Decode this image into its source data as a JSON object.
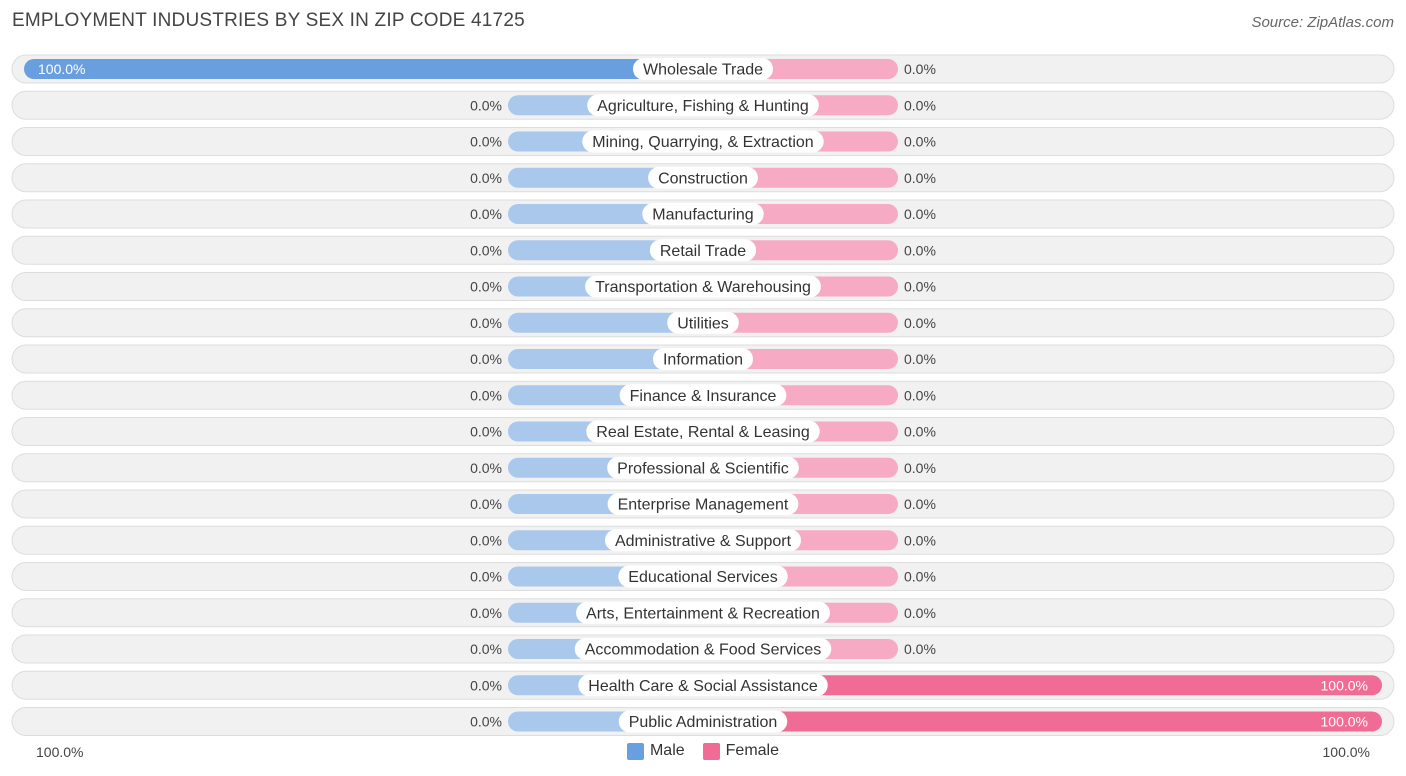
{
  "header": {
    "title": "EMPLOYMENT INDUSTRIES BY SEX IN ZIP CODE 41725",
    "source": "Source: ZipAtlas.com"
  },
  "colors": {
    "male_strong": "#6a9fdf",
    "male_light": "#a9c8ec",
    "female_strong": "#f06c96",
    "female_light": "#f6aac4",
    "row_bg": "#f1f1f1",
    "row_border": "#dddddd"
  },
  "axis": {
    "left_label": "100.0%",
    "right_label": "100.0%"
  },
  "legend": {
    "male_label": "Male",
    "female_label": "Female"
  },
  "chart_data": {
    "type": "bar",
    "orientation": "horizontal-diverging",
    "title": "EMPLOYMENT INDUSTRIES BY SEX IN ZIP CODE 41725",
    "xlim": [
      -100,
      100
    ],
    "categories": [
      "Wholesale Trade",
      "Agriculture, Fishing & Hunting",
      "Mining, Quarrying, & Extraction",
      "Construction",
      "Manufacturing",
      "Retail Trade",
      "Transportation & Warehousing",
      "Utilities",
      "Information",
      "Finance & Insurance",
      "Real Estate, Rental & Leasing",
      "Professional & Scientific",
      "Enterprise Management",
      "Administrative & Support",
      "Educational Services",
      "Arts, Entertainment & Recreation",
      "Accommodation & Food Services",
      "Health Care & Social Assistance",
      "Public Administration"
    ],
    "series": [
      {
        "name": "Male",
        "values": [
          100,
          0,
          0,
          0,
          0,
          0,
          0,
          0,
          0,
          0,
          0,
          0,
          0,
          0,
          0,
          0,
          0,
          0,
          0
        ],
        "labels": [
          "100.0%",
          "0.0%",
          "0.0%",
          "0.0%",
          "0.0%",
          "0.0%",
          "0.0%",
          "0.0%",
          "0.0%",
          "0.0%",
          "0.0%",
          "0.0%",
          "0.0%",
          "0.0%",
          "0.0%",
          "0.0%",
          "0.0%",
          "0.0%",
          "0.0%"
        ]
      },
      {
        "name": "Female",
        "values": [
          0,
          0,
          0,
          0,
          0,
          0,
          0,
          0,
          0,
          0,
          0,
          0,
          0,
          0,
          0,
          0,
          0,
          100,
          100
        ],
        "labels": [
          "0.0%",
          "0.0%",
          "0.0%",
          "0.0%",
          "0.0%",
          "0.0%",
          "0.0%",
          "0.0%",
          "0.0%",
          "0.0%",
          "0.0%",
          "0.0%",
          "0.0%",
          "0.0%",
          "0.0%",
          "0.0%",
          "0.0%",
          "100.0%",
          "100.0%"
        ]
      }
    ],
    "legend_position": "bottom-center"
  }
}
